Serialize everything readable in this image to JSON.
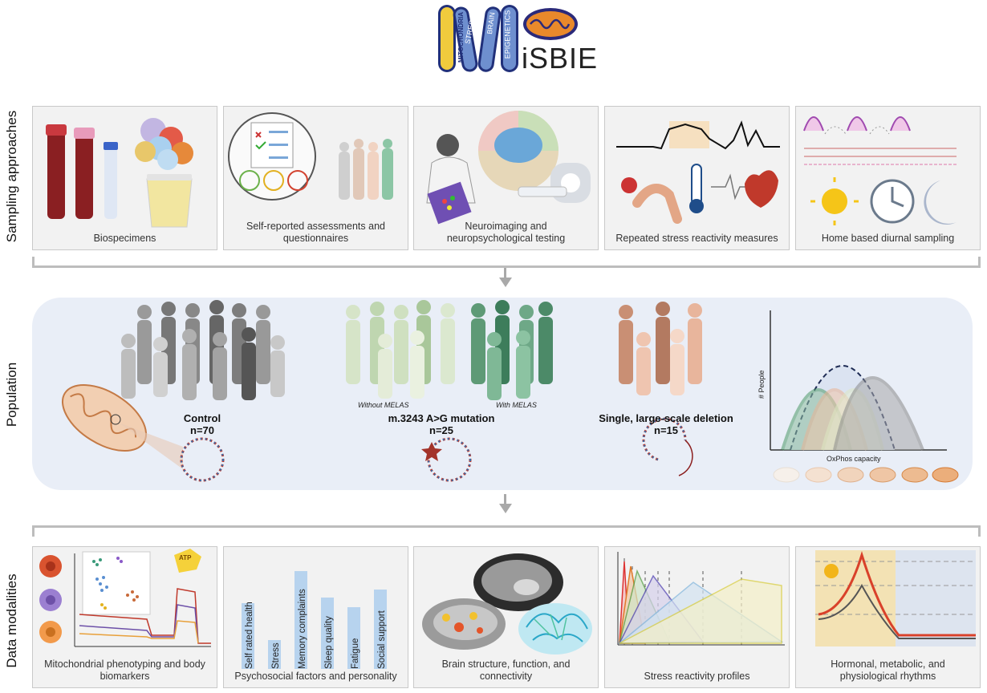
{
  "logo": {
    "mito_word": "MITOCHONDRIA",
    "stress": "STRESS",
    "brain": "BRAIN",
    "epigenetics": "EPIGENETICS",
    "suffix": "iSBIE"
  },
  "rows": {
    "sampling": "Sampling approaches",
    "population": "Population",
    "data": "Data modalities"
  },
  "sampling_panels": [
    {
      "caption": "Biospecimens"
    },
    {
      "caption": "Self-reported assessments and questionnaires"
    },
    {
      "caption": "Neuroimaging and neuropsychological testing"
    },
    {
      "caption": "Repeated stress reactivity measures"
    },
    {
      "caption": "Home based diurnal sampling"
    }
  ],
  "population": {
    "control": {
      "name": "Control",
      "n": "n=70"
    },
    "mutation": {
      "name": "m.3243 A>G mutation",
      "n": "n=25",
      "without": "Without MELAS",
      "with": "With MELAS"
    },
    "deletion": {
      "name": "Single, large-scale deletion",
      "n": "n=15"
    },
    "dist": {
      "ylabel": "# People",
      "xlabel": "OxPhos capacity"
    }
  },
  "data_panels": [
    {
      "caption": "Mitochondrial phenotyping and body biomarkers",
      "atp": "ATP"
    },
    {
      "caption": "Psychosocial factors and personality"
    },
    {
      "caption": "Brain structure, function, and connectivity"
    },
    {
      "caption": "Stress reactivity profiles"
    },
    {
      "caption": "Hormonal, metabolic, and physiological rhythms"
    }
  ],
  "psychosocial_bars": [
    {
      "label": "Self rated health",
      "value": 0.58
    },
    {
      "label": "Stress",
      "value": 0.25
    },
    {
      "label": "Memory complaints",
      "value": 0.86
    },
    {
      "label": "Sleep quality",
      "value": 0.63
    },
    {
      "label": "Fatigue",
      "value": 0.54
    },
    {
      "label": "Social support",
      "value": 0.7
    }
  ],
  "colors": {
    "control": "#8a8a8a",
    "mutation": "#6fa084",
    "deletion": "#e2a58a",
    "bar": "#b7d3ee",
    "accent": "#e5631e"
  }
}
